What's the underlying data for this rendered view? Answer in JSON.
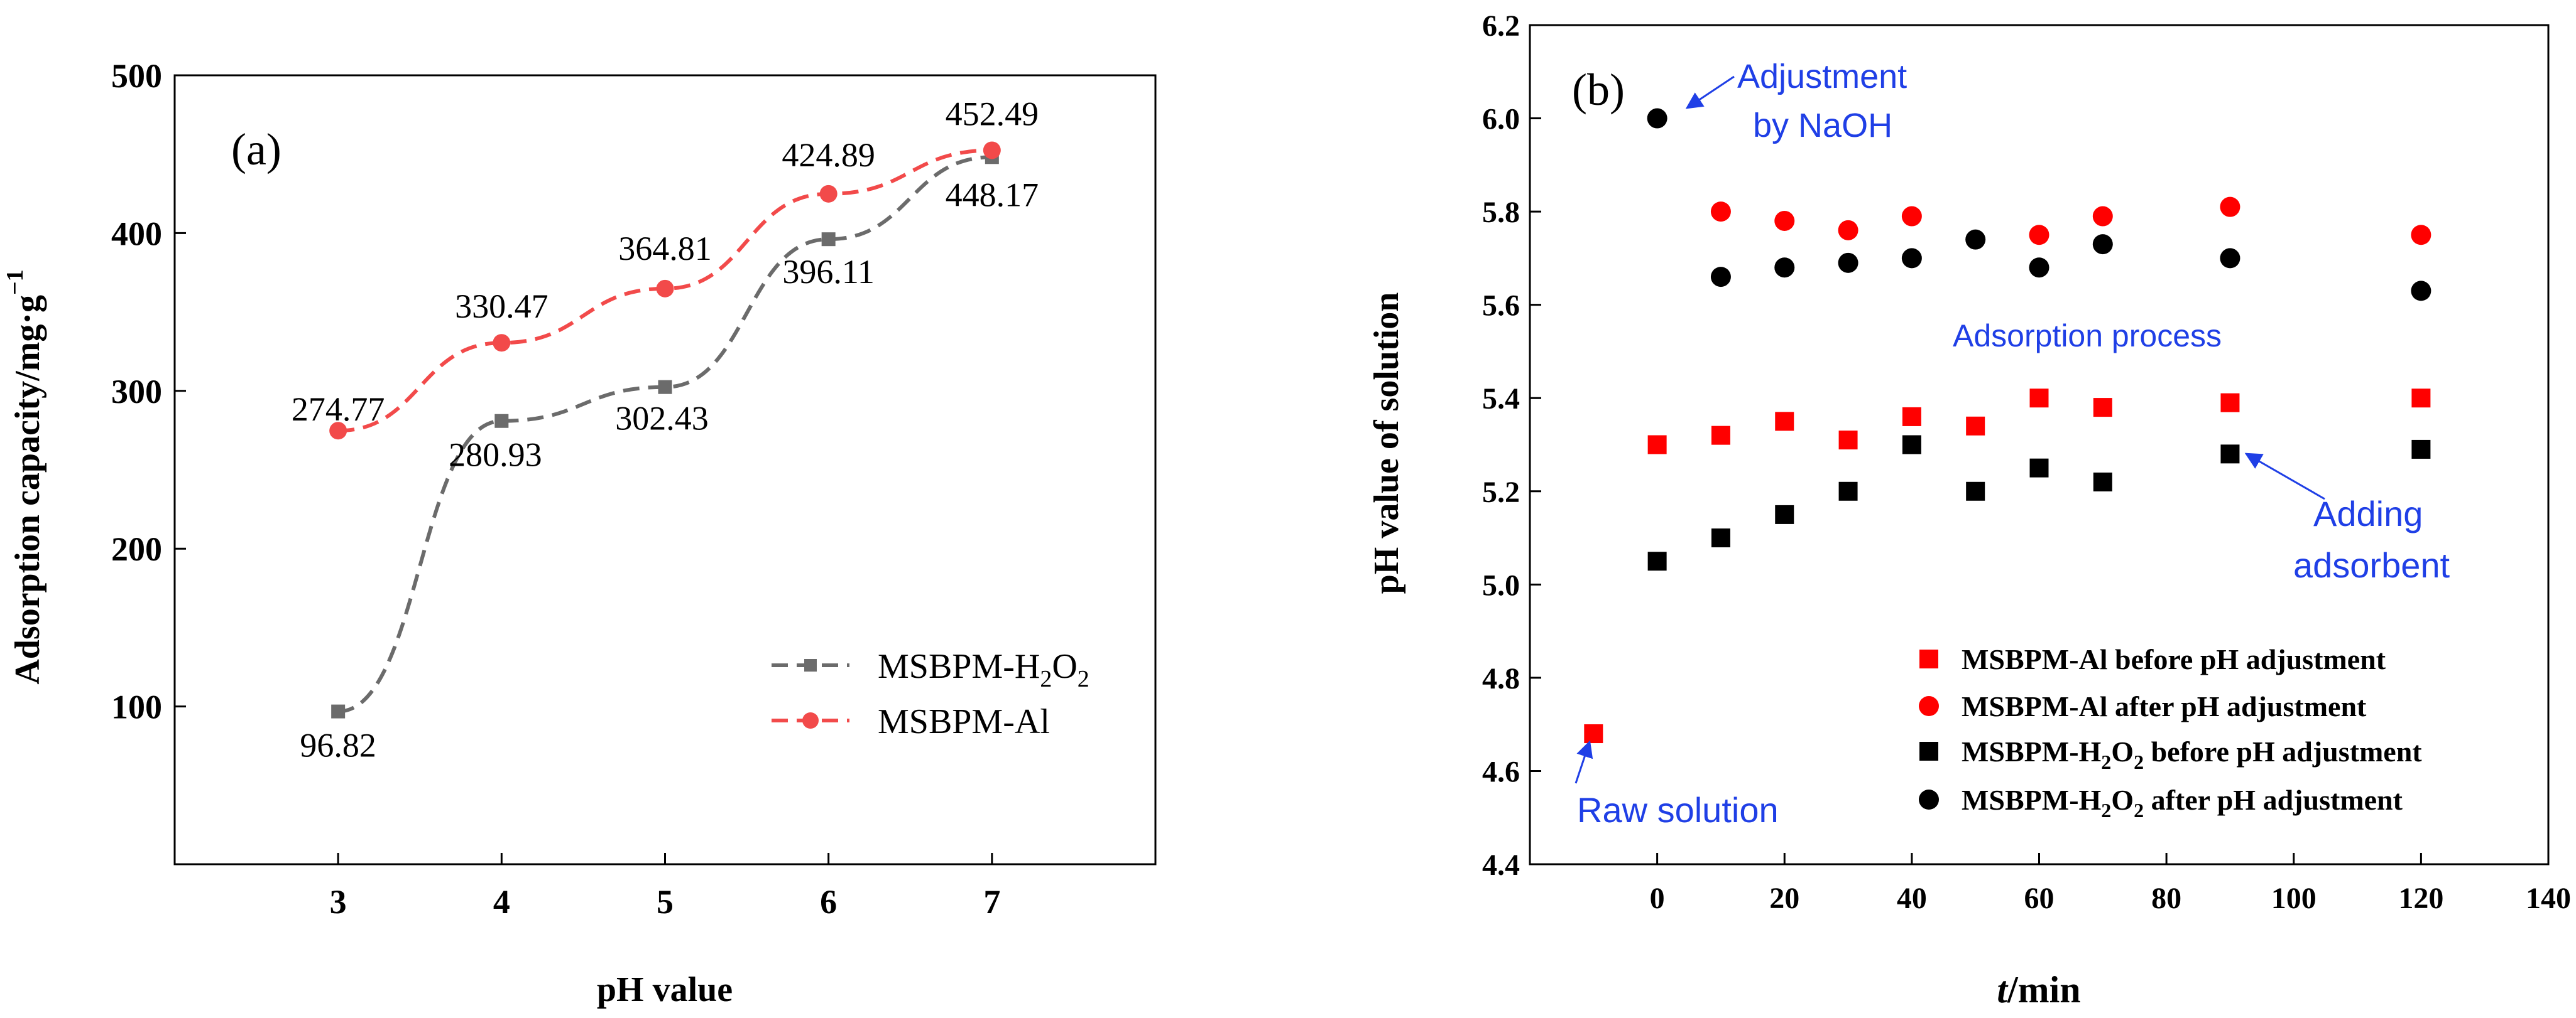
{
  "chart_data": [
    {
      "type": "line",
      "panel_label": "(a)",
      "xlabel": "pH value",
      "ylabel_main": "Adsorption capacity/mg·g",
      "ylabel_sup": "−1",
      "x": [
        3,
        4,
        5,
        6,
        7
      ],
      "xlim": [
        2,
        8
      ],
      "ylim": [
        0,
        500
      ],
      "xticks": [
        "3",
        "4",
        "5",
        "6",
        "7"
      ],
      "yticks": [
        "100",
        "200",
        "300",
        "400",
        "500"
      ],
      "series": [
        {
          "name": "MSBPM-H2O2",
          "legend_main": "MSBPM-H",
          "legend_sub1": "2",
          "legend_mid": "O",
          "legend_sub2": "2",
          "color": "#6b6b6b",
          "marker": "square",
          "values": [
            96.82,
            280.93,
            302.43,
            396.11,
            448.17
          ],
          "labels": [
            "96.82",
            "280.93",
            "302.43",
            "396.11",
            "448.17"
          ]
        },
        {
          "name": "MSBPM-Al",
          "legend_main": "MSBPM-Al",
          "color": "#f24a4a",
          "marker": "circle",
          "values": [
            274.77,
            330.47,
            364.81,
            424.89,
            452.49
          ],
          "labels": [
            "274.77",
            "330.47",
            "364.81",
            "424.89",
            "452.49"
          ]
        }
      ],
      "legend_position": "lower-right"
    },
    {
      "type": "scatter",
      "panel_label": "(b)",
      "xlabel_italic": "t",
      "xlabel_rest": "/min",
      "ylabel": "pH value of solution",
      "xlim": [
        -20,
        140
      ],
      "ylim": [
        4.4,
        6.2
      ],
      "xticks": [
        "0",
        "20",
        "40",
        "60",
        "80",
        "100",
        "120",
        "140"
      ],
      "yticks": [
        "4.4",
        "4.6",
        "4.8",
        "5.0",
        "5.2",
        "5.4",
        "5.6",
        "5.8",
        "6.0",
        "6.2"
      ],
      "series": [
        {
          "name": "MSBPM-Al before pH adjustment",
          "legend_text": "MSBPM-Al before pH adjustment",
          "color": "#ff0000",
          "marker": "square",
          "x": [
            -10,
            0,
            10,
            20,
            30,
            40,
            50,
            60,
            70,
            90,
            120
          ],
          "y": [
            4.68,
            5.3,
            5.32,
            5.35,
            5.31,
            5.36,
            5.34,
            5.4,
            5.38,
            5.39,
            5.4
          ]
        },
        {
          "name": "MSBPM-Al after pH adjustment",
          "legend_text": "MSBPM-Al after pH adjustment",
          "color": "#ff0000",
          "marker": "circle",
          "x": [
            10,
            20,
            30,
            40,
            60,
            70,
            90,
            120
          ],
          "y": [
            5.8,
            5.78,
            5.76,
            5.79,
            5.75,
            5.79,
            5.81,
            5.75
          ]
        },
        {
          "name": "MSBPM-H2O2 before pH adjustment",
          "legend_main": "MSBPM-H",
          "legend_sub1": "2",
          "legend_mid": "O",
          "legend_sub2": "2",
          "legend_tail": " before pH adjustment",
          "color": "#000000",
          "marker": "square",
          "x": [
            0,
            10,
            20,
            30,
            40,
            50,
            60,
            70,
            90,
            120
          ],
          "y": [
            5.05,
            5.1,
            5.15,
            5.2,
            5.3,
            5.2,
            5.25,
            5.22,
            5.28,
            5.29
          ]
        },
        {
          "name": "MSBPM-H2O2 after pH adjustment",
          "legend_main": "MSBPM-H",
          "legend_sub1": "2",
          "legend_mid": "O",
          "legend_sub2": "2",
          "legend_tail": " after pH adjustment",
          "color": "#000000",
          "marker": "circle",
          "x": [
            0,
            10,
            20,
            30,
            40,
            50,
            60,
            70,
            90,
            120
          ],
          "y": [
            6.0,
            5.66,
            5.68,
            5.69,
            5.7,
            5.74,
            5.68,
            5.73,
            5.7,
            5.63
          ]
        }
      ],
      "annotations": {
        "adjustment_line1": "Adjustment",
        "adjustment_line2": "by NaOH",
        "adsorption": "Adsorption process",
        "adding_line1": "Adding",
        "adding_line2": "adsorbent",
        "raw": "Raw solution"
      },
      "legend_position": "lower-right"
    }
  ]
}
